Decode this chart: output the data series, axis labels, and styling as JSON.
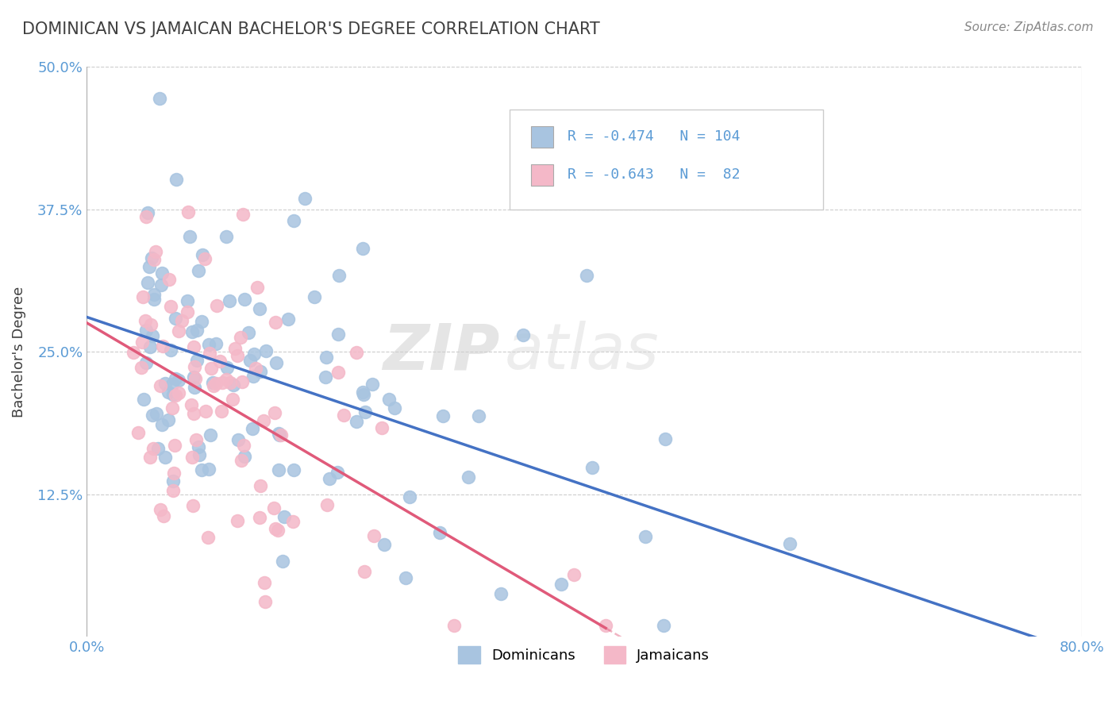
{
  "title": "DOMINICAN VS JAMAICAN BACHELOR'S DEGREE CORRELATION CHART",
  "source_text": "Source: ZipAtlas.com",
  "xlabel": "",
  "ylabel": "Bachelor's Degree",
  "xlim": [
    0.0,
    0.8
  ],
  "ylim": [
    0.0,
    0.5
  ],
  "xtick_labels": [
    "0.0%",
    "80.0%"
  ],
  "ytick_labels": [
    "12.5%",
    "25.0%",
    "37.5%",
    "50.0%"
  ],
  "dominican_color": "#a8c4e0",
  "jamaican_color": "#f4b8c8",
  "dominican_line_color": "#4472c4",
  "jamaican_line_color": "#e05a7a",
  "legend_r1_val": "-0.474",
  "legend_n1_val": "104",
  "legend_r2_val": "-0.643",
  "legend_n2_val": "82",
  "legend_label1": "Dominicans",
  "legend_label2": "Jamaicans",
  "watermark_zip": "ZIP",
  "watermark_atlas": "atlas",
  "background_color": "#ffffff",
  "grid_color": "#cccccc",
  "title_color": "#404040",
  "axis_label_color": "#404040",
  "blue_text_color": "#5b9bd5"
}
